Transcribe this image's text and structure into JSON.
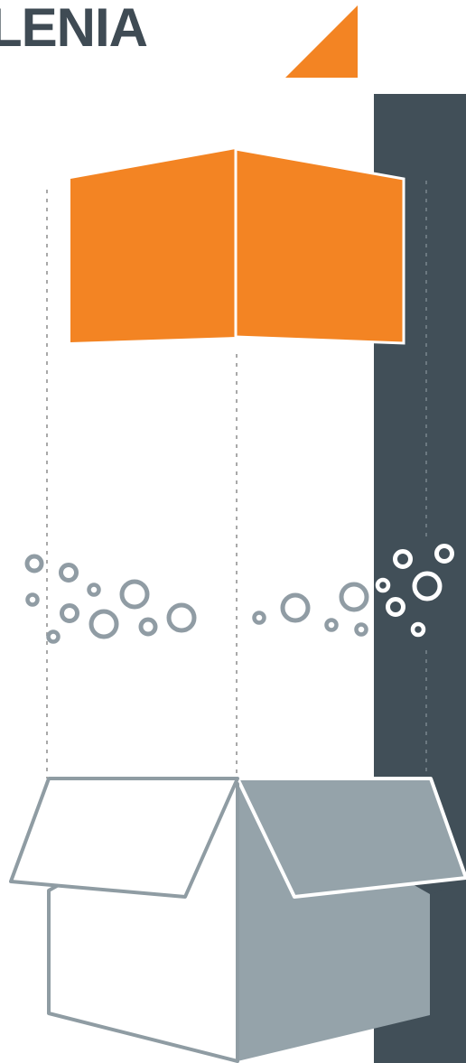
{
  "header": {
    "brand_text": "LENIA"
  },
  "colors": {
    "brand_text": "#3f4b54",
    "accent_orange": "#f38423",
    "dark_column": "#414f58",
    "box_gray": "#95a3aa",
    "box_outline": "#8f9ca3",
    "bubble_gray": "#909ca4",
    "bubble_white": "#ffffff",
    "guide_line": "#a9a9a9",
    "background": "#ffffff"
  },
  "icons": {
    "corner_shape": "orange-triangle-icon",
    "hanging_panel": "orange-folded-panel-icon",
    "bubbles": "circle-bubbles-icon",
    "box": "open-box-icon"
  }
}
